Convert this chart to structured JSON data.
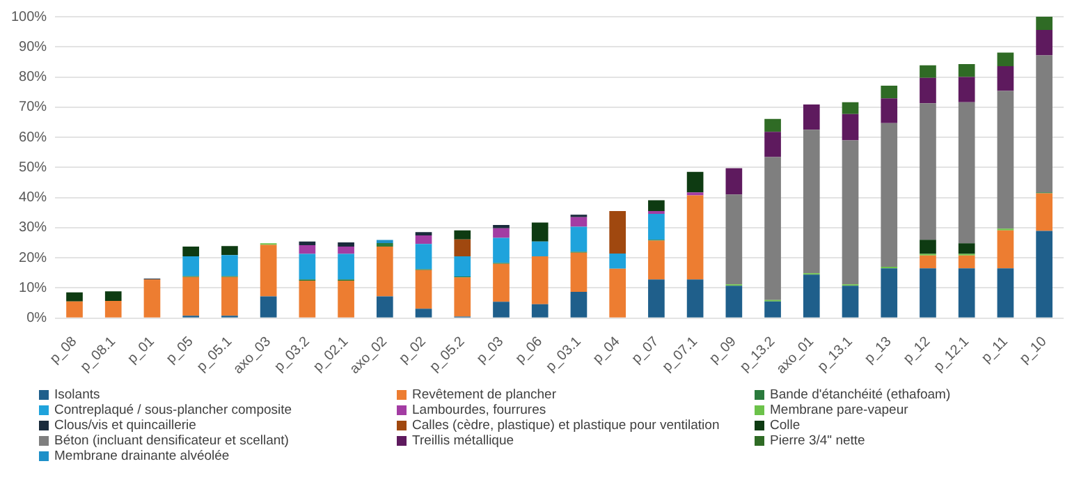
{
  "chart_data": {
    "type": "bar",
    "stacked": true,
    "legend": "bottom",
    "grid": "y",
    "categories": [
      "p_08",
      "p_08.1",
      "p_01",
      "p_05",
      "p_05.1",
      "axo_03",
      "p_03.2",
      "p_02.1",
      "axo_02",
      "p_02",
      "p_05.2",
      "p_03",
      "p_06",
      "p_03.1",
      "p_04",
      "p_07",
      "p_07.1",
      "p_09",
      "p_13.2",
      "axo_01",
      "p_13.1",
      "p_13",
      "p_12",
      "p_12.1",
      "p_11",
      "p_10"
    ],
    "ylim": [
      0,
      100
    ],
    "yticks": [
      {
        "value": 0,
        "label": "0%"
      },
      {
        "value": 10,
        "label": "10%"
      },
      {
        "value": 20,
        "label": "20%"
      },
      {
        "value": 30,
        "label": "30%"
      },
      {
        "value": 40,
        "label": "40%"
      },
      {
        "value": 50,
        "label": "50%"
      },
      {
        "value": 60,
        "label": "60%"
      },
      {
        "value": 70,
        "label": "70%"
      },
      {
        "value": 80,
        "label": "80%"
      },
      {
        "value": 90,
        "label": "90%"
      },
      {
        "value": 100,
        "label": "100%"
      }
    ],
    "series": [
      {
        "name": "Isolants",
        "color": "#1f5f8b",
        "values": [
          null,
          null,
          null,
          0.8,
          0.8,
          7.2,
          null,
          null,
          7.2,
          3.1,
          0.5,
          5.4,
          4.6,
          8.7,
          null,
          12.8,
          12.8,
          10.7,
          5.5,
          14.4,
          10.7,
          16.5,
          16.5,
          16.5,
          16.5,
          28.9
        ]
      },
      {
        "name": "Revêtement de plancher",
        "color": "#ed7d31",
        "values": [
          5.5,
          5.7,
          12.8,
          12.8,
          12.8,
          17.1,
          12.4,
          12.4,
          16.5,
          12.8,
          13,
          12.6,
          15.9,
          13,
          16.4,
          12.9,
          27.9,
          null,
          null,
          null,
          null,
          null,
          4.3,
          4.3,
          12.6,
          12.5
        ]
      },
      {
        "name": "Bande d'étanchéité (ethafoam)",
        "color": "#2a7a3c",
        "values": [
          null,
          null,
          null,
          0.3,
          0.3,
          null,
          0.4,
          0.4,
          1.2,
          0.3,
          0.3,
          0.3,
          null,
          0.3,
          null,
          0.3,
          null,
          null,
          null,
          null,
          null,
          null,
          null,
          null,
          null,
          0.3
        ]
      },
      {
        "name": "Contreplaqué / sous-plancher composite",
        "color": "#1fa3dc",
        "values": [
          null,
          null,
          null,
          6.6,
          7,
          null,
          8.5,
          8.5,
          null,
          8.4,
          6.7,
          8.3,
          4.9,
          8.3,
          5,
          8.6,
          null,
          null,
          null,
          null,
          null,
          null,
          null,
          null,
          null,
          null
        ]
      },
      {
        "name": "Lambourdes, fourrures",
        "color": "#a33ca3",
        "values": [
          null,
          null,
          null,
          null,
          null,
          null,
          2.9,
          2.4,
          null,
          2.8,
          null,
          3.2,
          null,
          3.2,
          null,
          0.9,
          1,
          null,
          null,
          null,
          null,
          null,
          null,
          null,
          null,
          null
        ]
      },
      {
        "name": "Membrane pare-vapeur",
        "color": "#6cc24a",
        "values": [
          null,
          null,
          null,
          null,
          null,
          0.5,
          null,
          null,
          null,
          null,
          null,
          null,
          null,
          null,
          null,
          null,
          null,
          0.5,
          0.5,
          0.5,
          0.5,
          0.5,
          0.5,
          0.5,
          0.6,
          null
        ]
      },
      {
        "name": "Clous/vis et quincaillerie",
        "color": "#1a2b3c",
        "values": [
          null,
          null,
          0.3,
          null,
          null,
          null,
          1.2,
          1.4,
          null,
          1.1,
          null,
          1.1,
          null,
          0.8,
          null,
          null,
          null,
          null,
          null,
          null,
          null,
          null,
          null,
          null,
          null,
          null
        ]
      },
      {
        "name": "Calles (cèdre, plastique) et plastique pour ventilation",
        "color": "#a0480f",
        "values": [
          null,
          null,
          null,
          null,
          null,
          null,
          null,
          null,
          null,
          null,
          5.6,
          null,
          null,
          null,
          14.1,
          null,
          null,
          null,
          null,
          null,
          null,
          null,
          null,
          null,
          null,
          null
        ]
      },
      {
        "name": "Colle",
        "color": "#0e3b12",
        "values": [
          3,
          3.2,
          null,
          3.2,
          3,
          null,
          null,
          null,
          null,
          null,
          3,
          null,
          6.3,
          null,
          null,
          3.6,
          6.8,
          null,
          null,
          null,
          null,
          null,
          4.7,
          3.5,
          null,
          null
        ]
      },
      {
        "name": "Béton (incluant densificateur et scellant)",
        "color": "#7f7f7f",
        "values": [
          null,
          null,
          null,
          null,
          null,
          null,
          null,
          null,
          null,
          null,
          null,
          null,
          null,
          null,
          null,
          null,
          null,
          29.8,
          47.4,
          47.6,
          47.8,
          47.7,
          45.3,
          46.8,
          45.7,
          45.5
        ]
      },
      {
        "name": "Treillis métallique",
        "color": "#5e1a5e",
        "values": [
          null,
          null,
          null,
          null,
          null,
          null,
          null,
          null,
          null,
          null,
          null,
          null,
          null,
          null,
          null,
          null,
          null,
          8.7,
          8.4,
          8.4,
          8.7,
          8.2,
          8.4,
          8.4,
          8.2,
          8.4
        ]
      },
      {
        "name": "Pierre 3/4\" nette",
        "color": "#2f6b25",
        "values": [
          null,
          null,
          null,
          null,
          null,
          null,
          null,
          null,
          null,
          null,
          null,
          null,
          null,
          null,
          null,
          null,
          null,
          null,
          4.3,
          null,
          3.9,
          4.2,
          4.2,
          4.3,
          4.5,
          4.4
        ]
      },
      {
        "name": "Membrane drainante alvéolée",
        "color": "#1e90c8",
        "values": [
          null,
          null,
          null,
          null,
          null,
          null,
          null,
          null,
          1,
          null,
          null,
          null,
          null,
          null,
          null,
          null,
          null,
          null,
          null,
          null,
          null,
          null,
          null,
          null,
          null,
          null
        ]
      }
    ]
  }
}
